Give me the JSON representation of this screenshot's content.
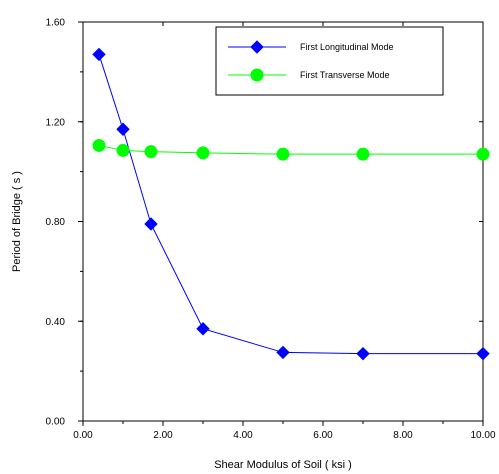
{
  "chart_data": {
    "type": "line",
    "xlabel": "Shear Modulus of Soil ( ksi )",
    "ylabel": "Period of Bridge ( s )",
    "xlim": [
      0,
      10
    ],
    "ylim": [
      0,
      1.6
    ],
    "x_ticks": [
      "0.00",
      "2.00",
      "4.00",
      "6.00",
      "8.00",
      "10.00"
    ],
    "y_ticks": [
      "0.00",
      "0.40",
      "0.80",
      "1.20",
      "1.60"
    ],
    "grid": false,
    "legend_position": "top-right",
    "series": [
      {
        "name": "First Longitudinal Mode",
        "color": "#0000ff",
        "marker": "diamond",
        "x": [
          0.4,
          1.0,
          1.7,
          3.0,
          5.0,
          7.0,
          10.0
        ],
        "y": [
          1.47,
          1.17,
          0.79,
          0.37,
          0.275,
          0.27,
          0.27
        ]
      },
      {
        "name": "First Transverse Mode",
        "color": "#00ff00",
        "marker": "circle",
        "x": [
          0.4,
          1.0,
          1.7,
          3.0,
          5.0,
          7.0,
          10.0
        ],
        "y": [
          1.105,
          1.085,
          1.08,
          1.075,
          1.07,
          1.07,
          1.07
        ]
      }
    ]
  }
}
